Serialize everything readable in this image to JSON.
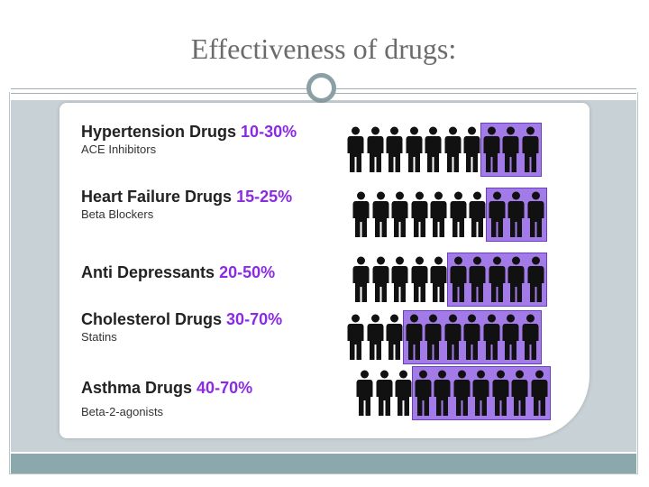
{
  "slide": {
    "title": "Effectiveness of drugs:"
  },
  "drugs": [
    {
      "name": "Hypertension Drugs",
      "range": "10-30%",
      "subtitle": "ACE Inhibitors",
      "highlighted": 3,
      "total": 10
    },
    {
      "name": "Heart Failure Drugs",
      "range": "15-25%",
      "subtitle": "Beta Blockers",
      "highlighted": 3,
      "total": 10
    },
    {
      "name": "Anti Depressants",
      "range": "20-50%",
      "subtitle": "",
      "highlighted": 5,
      "total": 10
    },
    {
      "name": "Cholesterol Drugs",
      "range": "30-70%",
      "subtitle": "Statins",
      "highlighted": 7,
      "total": 10
    },
    {
      "name": "Asthma Drugs",
      "range": "40-70%",
      "subtitle": "Beta-2-agonists",
      "highlighted": 7,
      "total": 10
    }
  ],
  "colors": {
    "highlight": "#a27be8",
    "percent_text": "#8a2be2",
    "figure": "#111111"
  },
  "icons": {
    "person": "person-silhouette-icon"
  }
}
